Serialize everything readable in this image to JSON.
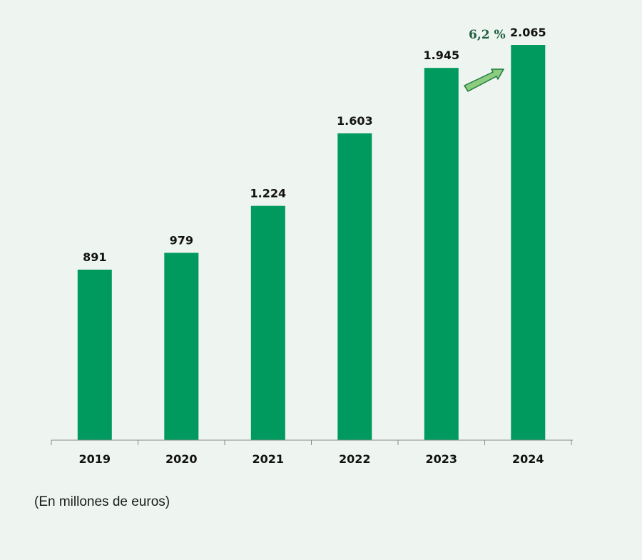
{
  "chart_data": {
    "type": "bar",
    "categories": [
      "2019",
      "2020",
      "2021",
      "2022",
      "2023",
      "2024"
    ],
    "values": [
      891,
      979,
      1224,
      1603,
      1945,
      2065
    ],
    "value_labels": [
      "891",
      "979",
      "1.224",
      "1.603",
      "1.945",
      "2.065"
    ],
    "ylim": [
      0,
      2065
    ],
    "grid": false,
    "annotation": {
      "text": "6,2 %",
      "from_category": "2023",
      "to_category": "2024"
    },
    "colors": {
      "bar": "#009a5e",
      "arrow_fill": "#8ccc7e",
      "arrow_stroke": "#1f7a3f",
      "growth_text": "#1f5f3f",
      "background": "#eef5f0"
    }
  },
  "note": "(En millones de euros)"
}
